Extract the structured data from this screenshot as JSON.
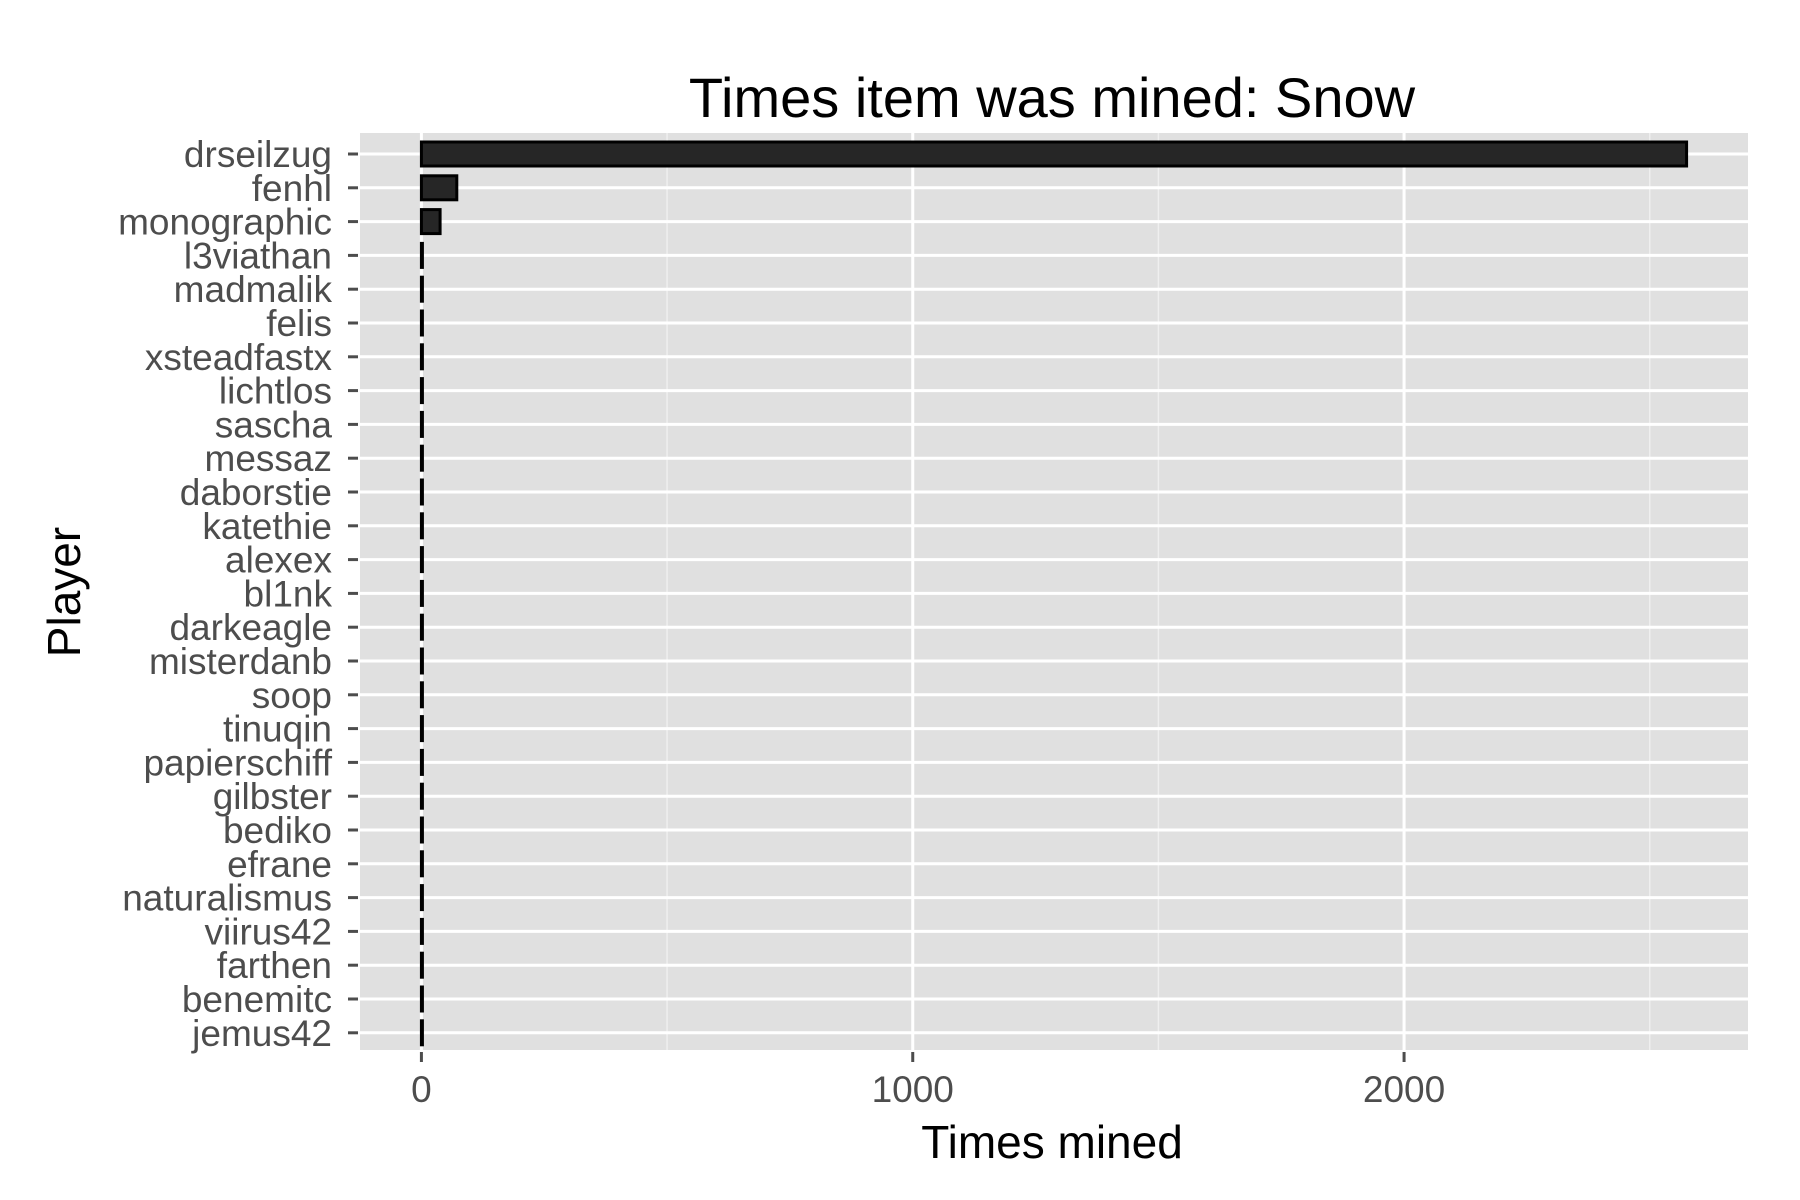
{
  "chart_data": {
    "type": "bar",
    "orientation": "horizontal",
    "title": "Times item was mined: Snow",
    "xlabel": "Times mined",
    "ylabel": "Player",
    "xlim": [
      -125,
      2700
    ],
    "xticks": [
      0,
      1000,
      2000
    ],
    "xtick_labels": [
      "0",
      "1000",
      "2000"
    ],
    "grid": true,
    "legend": "none",
    "colors": {
      "panel_background": "#e0e0e0",
      "grid_major": "#ffffff",
      "grid_minor": "#efefef",
      "bar_fill": "#262626",
      "bar_outline": "#000000",
      "tick_label": "#4d4d4d"
    },
    "categories": [
      "drseilzug",
      "fenhl",
      "monographic",
      "l3viathan",
      "madmalik",
      "felis",
      "xsteadfastx",
      "lichtlos",
      "sascha",
      "messaz",
      "daborstie",
      "katethie",
      "alexex",
      "bl1nk",
      "darkeagle",
      "misterdanb",
      "soop",
      "tinuqin",
      "papierschiff",
      "gilbster",
      "bediko",
      "efrane",
      "naturalismus",
      "viirus42",
      "farthen",
      "benemitc",
      "jemus42"
    ],
    "values": [
      2575,
      72,
      38,
      1,
      1,
      1,
      1,
      1,
      1,
      1,
      1,
      1,
      1,
      1,
      1,
      1,
      1,
      1,
      1,
      1,
      1,
      1,
      1,
      1,
      1,
      1,
      1
    ]
  }
}
